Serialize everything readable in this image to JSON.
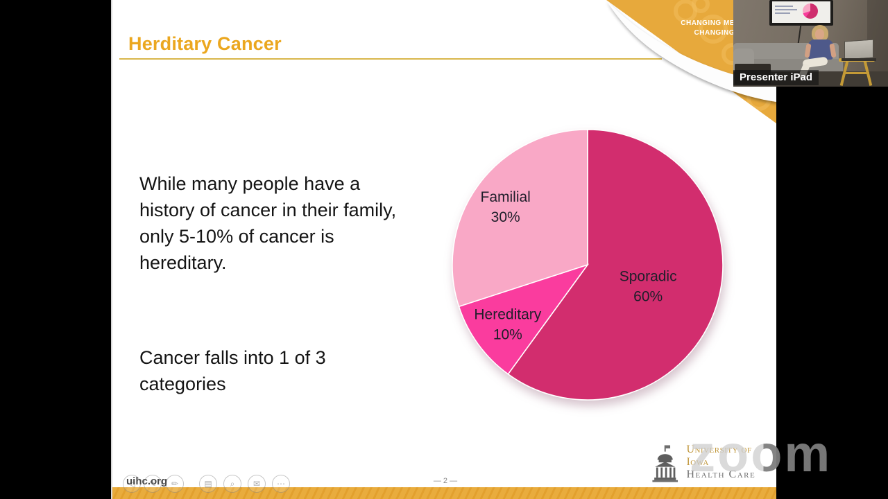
{
  "slide": {
    "title": "Herditary Cancer",
    "paragraphs": [
      "While many people have a history of cancer in their family, only 5-10% of cancer is hereditary.",
      "Cancer falls into 1 of 3 categories"
    ],
    "corner_banner": {
      "line1": "CHANGING ME",
      "line2": "CHANGING"
    },
    "footer": {
      "url": "uihc.org",
      "page_label": "— 2 —"
    },
    "logo": {
      "institution": "University of Iowa",
      "division": "Health Care"
    }
  },
  "chart_data": {
    "type": "pie",
    "title": "",
    "slices": [
      {
        "label": "Sporadic",
        "value": 60,
        "color": "#D22D6E"
      },
      {
        "label": "Hereditary",
        "value": 10,
        "color": "#FA3C9E"
      },
      {
        "label": "Familial",
        "value": 30,
        "color": "#F9A8C6"
      }
    ],
    "start_angle_deg": 0,
    "direction": "clockwise",
    "labels_position": "inside",
    "label_format": "{label} {value}%"
  },
  "video": {
    "label": "Presenter iPad"
  },
  "watermark": {
    "text": "zoom"
  },
  "toolbar_ghost": {
    "icons": [
      {
        "name": "back",
        "glyph": "◁"
      },
      {
        "name": "pen",
        "glyph": "✎"
      },
      {
        "name": "pencil",
        "glyph": "✏"
      },
      {
        "name": "image",
        "glyph": "▤"
      },
      {
        "name": "search",
        "glyph": "⌕"
      },
      {
        "name": "mail",
        "glyph": "✉"
      },
      {
        "name": "more",
        "glyph": "⋯"
      }
    ]
  },
  "colors": {
    "accent_gold": "#E7A93C",
    "title_gold": "#EBA71F",
    "rule_gold": "#D9B64A",
    "label_text": "#1f1e2a"
  }
}
